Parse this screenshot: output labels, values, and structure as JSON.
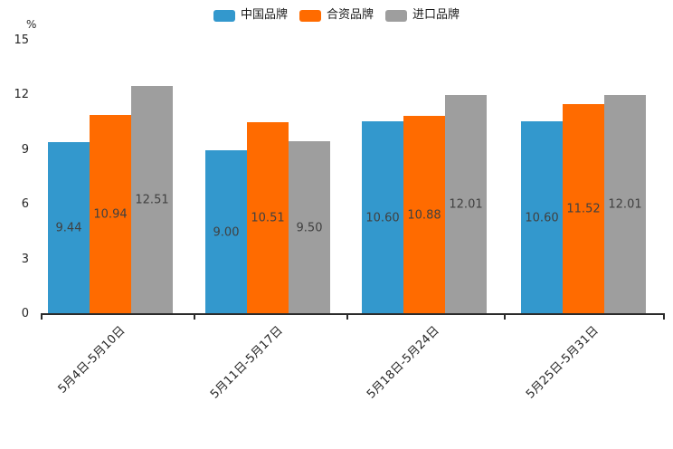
{
  "chart_data": {
    "type": "bar",
    "title": "",
    "unit_label": "%",
    "categories": [
      "5月4日-5月10日",
      "5月11日-5月17日",
      "5月18日-5月24日",
      "5月25日-5月31日"
    ],
    "series": [
      {
        "name": "中国品牌",
        "color": "#3398CD",
        "values": [
          9.44,
          9.0,
          10.6,
          10.6
        ],
        "labels": [
          "9.44",
          "9.00",
          "10.60",
          "10.60"
        ]
      },
      {
        "name": "合资品牌",
        "color": "#FF6B00",
        "values": [
          10.94,
          10.51,
          10.88,
          11.52
        ],
        "labels": [
          "10.94",
          "10.51",
          "10.88",
          "11.52"
        ]
      },
      {
        "name": "进口品牌",
        "color": "#9E9E9E",
        "values": [
          12.51,
          9.5,
          12.01,
          12.01
        ],
        "labels": [
          "12.51",
          "9.50",
          "12.01",
          "12.01"
        ]
      }
    ],
    "ylim": [
      0,
      15
    ],
    "yticks": [
      0,
      3,
      6,
      9,
      12,
      15
    ],
    "ytick_labels_top_to_bottom": [
      "15",
      "12",
      "9",
      "6",
      "3",
      "0"
    ],
    "grid": false,
    "legend_position": "top-center",
    "bar_label_position": "inside-center",
    "xlabel_rotation_deg": 45
  }
}
